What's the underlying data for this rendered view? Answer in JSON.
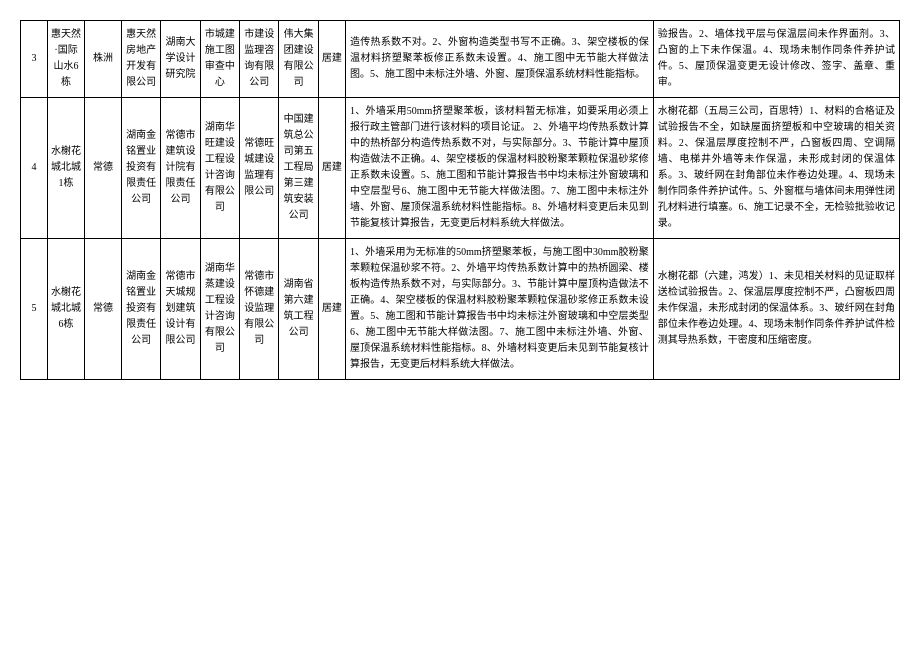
{
  "rows": [
    {
      "idx": "3",
      "project": "惠天然·国际山水6栋",
      "city": "株洲",
      "c1": "惠天然房地产开发有限公司",
      "c2": "湖南大学设计研究院",
      "c3": "市城建施工图审查中心",
      "c4": "市建设监理咨询有限公司",
      "c5": "伟大集团建设有限公司",
      "type": "居建",
      "issue": "造传热系数不对。2、外窗构造类型书写不正确。3、架空楼板的保温材料挤塑聚苯板修正系数未设置。4、施工图中无节能大样做法图。5、施工图中未标注外墙、外窗、屋顶保温系统材料性能指标。",
      "response": "验报告。2、墙体找平层与保温层间未作界面剂。3、凸窗的上下未作保温。4、现场未制作同条件养护试件。5、屋顶保温变更无设计修改、签字、盖章、重审。"
    },
    {
      "idx": "4",
      "project": "水榭花城北城1栋",
      "city": "常德",
      "c1": "湖南金铭置业投资有限责任公司",
      "c2": "常德市建筑设计院有限责任公司",
      "c3": "湖南华旺建设工程设计咨询有限公司",
      "c4": "常德旺城建设监理有限公司",
      "c5": "中国建筑总公司第五工程局第三建筑安装公司",
      "type": "居建",
      "issue": "1、外墙采用50mm挤塑聚苯板，该材料暂无标准，如要采用必须上报行政主管部门进行该材料的项目论证。 2、外墙平均传热系数计算中的热桥部分构造传热系数不对，与实际部分。3、节能计算中屋顶构造做法不正确。4、架空楼板的保温材料胶粉聚苯颗粒保温砂浆修正系数未设置。5、施工图和节能计算报告书中均未标注外窗玻璃和中空层型号6、施工图中无节能大样做法图。7、施工图中未标注外墙、外窗、屋顶保温系统材料性能指标。8、外墙材料变更后未见到节能复核计算报告，无变更后材料系统大样做法。",
      "response": "水榭花都（五局三公司，百思特）1、材料的合格证及试验报告不全，如缺屋面挤塑板和中空玻璃的相关资料。2、保温层厚度控制不严，凸窗板四周、空调隔墙、电梯井外墙等未作保温，未形成封闭的保温体系。3、玻纤网在封角部位未作卷边处理。4、现场未制作同条件养护试件。5、外窗框与墙体间未用弹性闭孔材料进行填塞。6、施工记录不全，无检验批验收记录。"
    },
    {
      "idx": "5",
      "project": "水榭花城北城6栋",
      "city": "常德",
      "c1": "湖南金铭置业投资有限责任公司",
      "c2": "常德市天城规划建筑设计有限公司",
      "c3": "湖南华蒸建设工程设计咨询有限公司",
      "c4": "常德市怀德建设监理有限公司",
      "c5": "湖南省第六建筑工程公司",
      "type": "居建",
      "issue": "1、外墙采用为无标准的50mm挤塑聚苯板，与施工图中30mm胶粉聚苯颗粒保温砂浆不符。2、外墙平均传热系数计算中的热桥圆梁、楼板构造传热系数不对，与实际部分。3、节能计算中屋顶构造做法不正确。4、架空楼板的保温材料胶粉聚苯颗粒保温砂浆修正系数未设置。5、施工图和节能计算报告书中均未标注外窗玻璃和中空层类型6、施工图中无节能大样做法图。7、施工图中未标注外墙、外窗、屋顶保温系统材料性能指标。8、外墙材料变更后未见到节能复核计算报告，无变更后材料系统大样做法。",
      "response": "水榭花都（六建，鸿发）1、未见相关材料的见证取样送检试验报告。2、保温层厚度控制不严，凸窗板四周未作保温，未形成封闭的保温体系。3、玻纤网在封角部位未作卷边处理。4、现场未制作同条件养护试件检测其导热系数，干密度和压缩密度。"
    }
  ]
}
